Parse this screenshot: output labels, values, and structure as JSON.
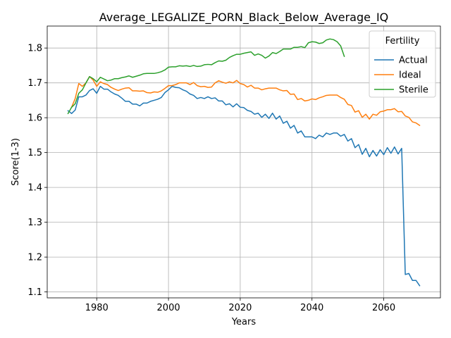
{
  "chart_data": {
    "type": "line",
    "title": "Average_LEGALIZE_PORN_Black_Below_Average_IQ",
    "xlabel": "Years",
    "ylabel": "Score(1-3)",
    "xlim": [
      1966.2,
      2075.8
    ],
    "ylim": [
      1.083,
      1.863
    ],
    "xticks": [
      1980,
      2000,
      2020,
      2040,
      2060
    ],
    "yticks": [
      1.1,
      1.2,
      1.3,
      1.4,
      1.5,
      1.6,
      1.7,
      1.8
    ],
    "grid": true,
    "legend": {
      "title": "Fertility",
      "placement": "top-right"
    },
    "colors": {
      "Actual": "#1f77b4",
      "Ideal": "#ff7f0e",
      "Sterile": "#2ca02c"
    },
    "series": [
      {
        "name": "Actual",
        "x": [
          1972,
          1973,
          1974,
          1975,
          1976,
          1977,
          1978,
          1979,
          1980,
          1981,
          1982,
          1983,
          1984,
          1985,
          1986,
          1987,
          1988,
          1989,
          1990,
          1991,
          1992,
          1993,
          1994,
          1995,
          1996,
          1997,
          1998,
          1999,
          2000,
          2001,
          2002,
          2003,
          2004,
          2005,
          2006,
          2007,
          2008,
          2009,
          2010,
          2011,
          2012,
          2013,
          2014,
          2015,
          2016,
          2017,
          2018,
          2019,
          2020,
          2021,
          2022,
          2023,
          2024,
          2025,
          2026,
          2027,
          2028,
          2029,
          2030,
          2031,
          2032,
          2033,
          2034,
          2035,
          2036,
          2037,
          2038,
          2039,
          2040,
          2041,
          2042,
          2043,
          2044,
          2045,
          2046,
          2047,
          2048,
          2049,
          2050,
          2051,
          2052,
          2053,
          2054,
          2055,
          2056,
          2057,
          2058,
          2059,
          2060,
          2061,
          2062,
          2063,
          2064,
          2065,
          2066,
          2067,
          2068,
          2069,
          2070
        ],
        "values": [
          1.62,
          1.612,
          1.622,
          1.66,
          1.66,
          1.665,
          1.678,
          1.683,
          1.67,
          1.69,
          1.682,
          1.682,
          1.674,
          1.668,
          1.664,
          1.656,
          1.647,
          1.647,
          1.639,
          1.639,
          1.634,
          1.642,
          1.642,
          1.647,
          1.65,
          1.653,
          1.658,
          1.672,
          1.68,
          1.69,
          1.687,
          1.686,
          1.68,
          1.676,
          1.668,
          1.664,
          1.655,
          1.658,
          1.655,
          1.66,
          1.655,
          1.657,
          1.648,
          1.648,
          1.637,
          1.64,
          1.631,
          1.64,
          1.63,
          1.629,
          1.621,
          1.618,
          1.61,
          1.613,
          1.601,
          1.61,
          1.598,
          1.613,
          1.596,
          1.605,
          1.584,
          1.59,
          1.57,
          1.578,
          1.556,
          1.562,
          1.545,
          1.545,
          1.545,
          1.54,
          1.55,
          1.545,
          1.556,
          1.552,
          1.556,
          1.556,
          1.547,
          1.552,
          1.533,
          1.54,
          1.514,
          1.523,
          1.495,
          1.512,
          1.488,
          1.506,
          1.49,
          1.508,
          1.494,
          1.514,
          1.498,
          1.516,
          1.496,
          1.512,
          1.15,
          1.153,
          1.133,
          1.133,
          1.118
        ]
      },
      {
        "name": "Ideal",
        "x": [
          1973,
          1974,
          1975,
          1976,
          1977,
          1978,
          1979,
          1980,
          1981,
          1982,
          1983,
          1984,
          1985,
          1986,
          1987,
          1988,
          1989,
          1990,
          1991,
          1992,
          1993,
          1994,
          1995,
          1996,
          1997,
          1998,
          1999,
          2000,
          2001,
          2002,
          2003,
          2004,
          2005,
          2006,
          2007,
          2008,
          2009,
          2010,
          2011,
          2012,
          2013,
          2014,
          2015,
          2016,
          2017,
          2018,
          2019,
          2020,
          2021,
          2022,
          2023,
          2024,
          2025,
          2026,
          2027,
          2028,
          2029,
          2030,
          2031,
          2032,
          2033,
          2034,
          2035,
          2036,
          2037,
          2038,
          2039,
          2040,
          2041,
          2042,
          2043,
          2044,
          2045,
          2046,
          2047,
          2048,
          2049,
          2050,
          2051,
          2052,
          2053,
          2054,
          2055,
          2056,
          2057,
          2058,
          2059,
          2060,
          2061,
          2062,
          2063,
          2064,
          2065,
          2066,
          2067,
          2068,
          2069,
          2070
        ],
        "values": [
          1.63,
          1.655,
          1.698,
          1.69,
          1.7,
          1.718,
          1.708,
          1.69,
          1.703,
          1.698,
          1.695,
          1.687,
          1.682,
          1.678,
          1.682,
          1.685,
          1.686,
          1.677,
          1.677,
          1.676,
          1.677,
          1.672,
          1.671,
          1.674,
          1.673,
          1.677,
          1.684,
          1.692,
          1.692,
          1.695,
          1.7,
          1.7,
          1.7,
          1.695,
          1.701,
          1.692,
          1.689,
          1.69,
          1.687,
          1.688,
          1.7,
          1.706,
          1.702,
          1.699,
          1.703,
          1.7,
          1.707,
          1.698,
          1.695,
          1.688,
          1.693,
          1.685,
          1.685,
          1.68,
          1.683,
          1.685,
          1.685,
          1.685,
          1.68,
          1.677,
          1.678,
          1.667,
          1.668,
          1.652,
          1.655,
          1.648,
          1.65,
          1.654,
          1.652,
          1.657,
          1.66,
          1.664,
          1.665,
          1.665,
          1.665,
          1.658,
          1.653,
          1.638,
          1.635,
          1.616,
          1.62,
          1.601,
          1.61,
          1.596,
          1.61,
          1.607,
          1.617,
          1.619,
          1.623,
          1.623,
          1.626,
          1.617,
          1.618,
          1.605,
          1.601,
          1.588,
          1.585,
          1.578
        ]
      },
      {
        "name": "Sterile",
        "x": [
          1972,
          1973,
          1974,
          1975,
          1976,
          1977,
          1978,
          1979,
          1980,
          1981,
          1982,
          1983,
          1984,
          1985,
          1986,
          1987,
          1988,
          1989,
          1990,
          1991,
          1992,
          1993,
          1994,
          1995,
          1996,
          1997,
          1998,
          1999,
          2000,
          2001,
          2002,
          2003,
          2004,
          2005,
          2006,
          2007,
          2008,
          2009,
          2010,
          2011,
          2012,
          2013,
          2014,
          2015,
          2016,
          2017,
          2018,
          2019,
          2020,
          2021,
          2022,
          2023,
          2024,
          2025,
          2026,
          2027,
          2028,
          2029,
          2030,
          2031,
          2032,
          2033,
          2034,
          2035,
          2036,
          2037,
          2038,
          2039,
          2040,
          2041,
          2042,
          2043,
          2044,
          2045,
          2046,
          2047,
          2048,
          2049
        ],
        "values": [
          1.612,
          1.63,
          1.64,
          1.67,
          1.68,
          1.7,
          1.718,
          1.712,
          1.703,
          1.716,
          1.711,
          1.706,
          1.708,
          1.712,
          1.712,
          1.715,
          1.717,
          1.72,
          1.716,
          1.719,
          1.722,
          1.726,
          1.727,
          1.727,
          1.727,
          1.729,
          1.732,
          1.737,
          1.745,
          1.746,
          1.746,
          1.749,
          1.748,
          1.749,
          1.747,
          1.75,
          1.747,
          1.748,
          1.752,
          1.753,
          1.752,
          1.758,
          1.763,
          1.762,
          1.765,
          1.773,
          1.778,
          1.782,
          1.782,
          1.785,
          1.787,
          1.789,
          1.779,
          1.783,
          1.779,
          1.771,
          1.777,
          1.787,
          1.784,
          1.79,
          1.797,
          1.797,
          1.797,
          1.802,
          1.802,
          1.804,
          1.801,
          1.815,
          1.818,
          1.817,
          1.813,
          1.815,
          1.823,
          1.826,
          1.824,
          1.818,
          1.806,
          1.776
        ]
      }
    ]
  }
}
